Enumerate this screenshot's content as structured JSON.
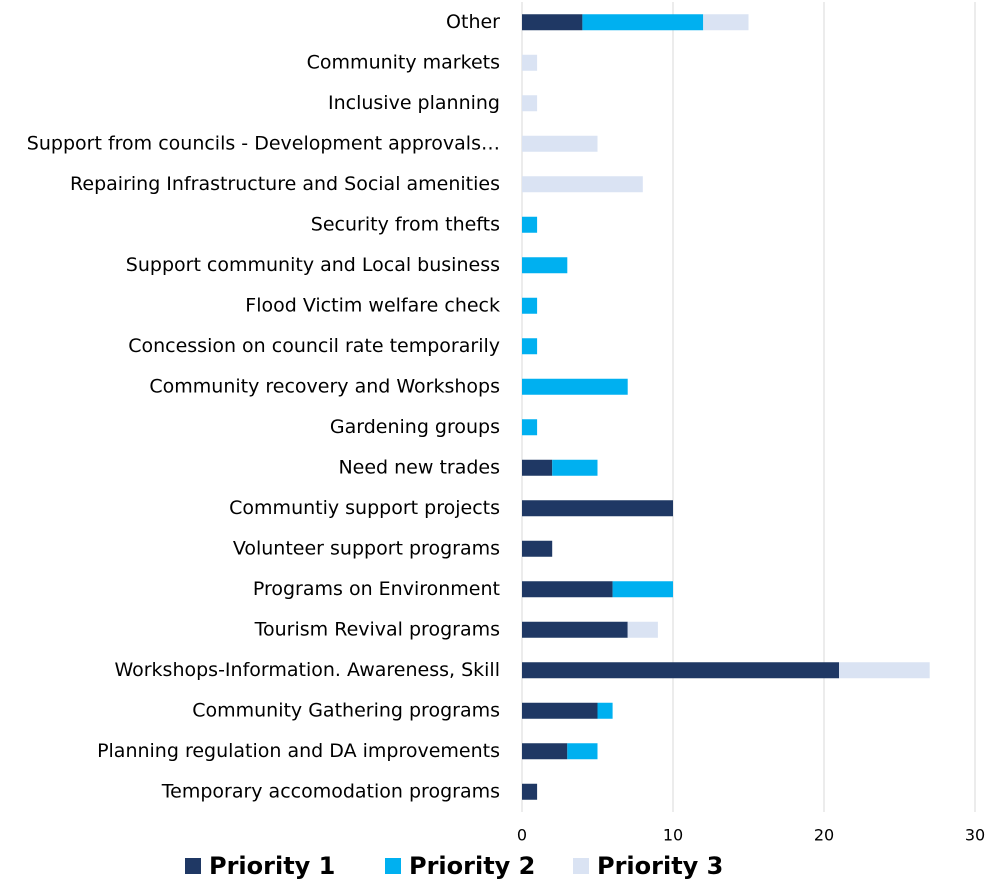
{
  "chart_data": {
    "type": "hbar_stacked",
    "categories": [
      "Other",
      "Community markets",
      "Inclusive planning",
      "Support from councils - Development approvals…",
      "Repairing Infrastructure and Social amenities",
      "Security from thefts",
      "Support community and Local business",
      "Flood Victim welfare check",
      "Concession on council rate temporarily",
      "Community recovery and Workshops",
      "Gardening groups",
      "Need new trades",
      "Communtiy support projects",
      "Volunteer support programs",
      "Programs on Environment",
      "Tourism Revival programs",
      "Workshops-Information. Awareness, Skill",
      "Community Gathering programs",
      "Planning regulation and DA improvements",
      "Temporary accomodation programs"
    ],
    "series": [
      {
        "name": "Priority 1",
        "color": "#1f3864",
        "values": [
          4,
          0,
          0,
          0,
          0,
          0,
          0,
          0,
          0,
          0,
          0,
          2,
          10,
          2,
          6,
          7,
          21,
          5,
          3,
          1
        ]
      },
      {
        "name": "Priority 2",
        "color": "#00b0f0",
        "values": [
          8,
          0,
          0,
          0,
          0,
          1,
          3,
          1,
          1,
          7,
          1,
          3,
          0,
          0,
          4,
          0,
          0,
          1,
          2,
          0
        ]
      },
      {
        "name": "Priority 3",
        "color": "#dae3f3",
        "values": [
          3,
          1,
          1,
          5,
          8,
          0,
          0,
          0,
          0,
          0,
          0,
          0,
          0,
          0,
          0,
          2,
          6,
          0,
          0,
          0
        ]
      }
    ],
    "xlim": [
      0,
      30
    ],
    "xticks": [
      0,
      10,
      20,
      30
    ],
    "grid": true,
    "legend": "bottom"
  }
}
